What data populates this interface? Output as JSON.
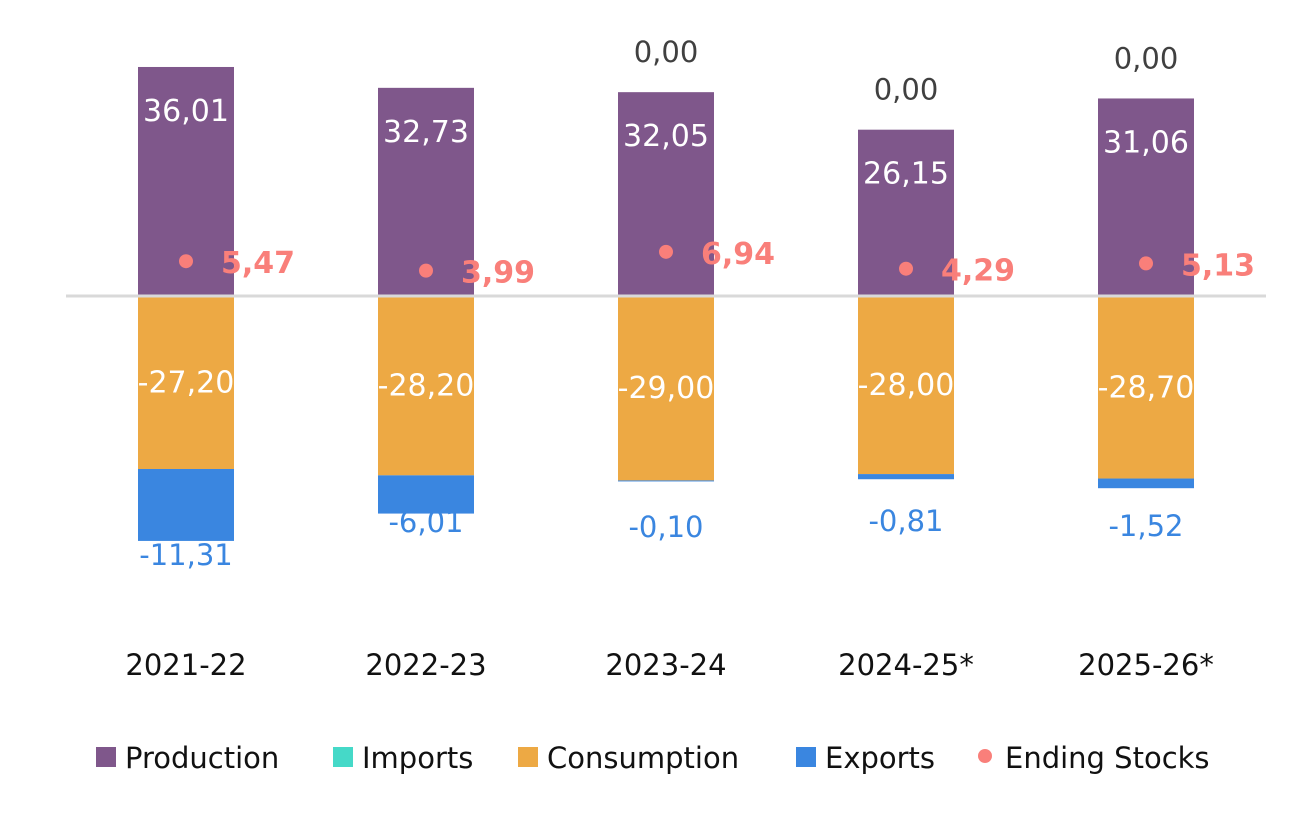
{
  "chart_data": {
    "type": "bar",
    "stacked": true,
    "title": "",
    "xlabel": "",
    "ylabel": "",
    "categories": [
      "2021-22",
      "2022-23",
      "2023-24",
      "2024-25*",
      "2025-26*"
    ],
    "series": [
      {
        "name": "Production",
        "kind": "bar",
        "color": "#7F578B",
        "values": [
          36.01,
          32.73,
          32.05,
          26.15,
          31.06
        ],
        "labels": [
          "36,01",
          "32,73",
          "32,05",
          "26,15",
          "31,06"
        ]
      },
      {
        "name": "Imports",
        "kind": "bar",
        "color": "#45D9C8",
        "values": [
          null,
          null,
          0.0,
          0.0,
          0.0
        ],
        "labels": [
          "",
          "",
          "0,00",
          "0,00",
          "0,00"
        ]
      },
      {
        "name": "Consumption",
        "kind": "bar",
        "color": "#EDA944",
        "values": [
          -27.2,
          -28.2,
          -29.0,
          -28.0,
          -28.7
        ],
        "labels": [
          "-27,20",
          "-28,20",
          "-29,00",
          "-28,00",
          "-28,70"
        ]
      },
      {
        "name": "Exports",
        "kind": "bar",
        "color": "#3A86E0",
        "values": [
          -11.31,
          -6.01,
          -0.1,
          -0.81,
          -1.52
        ],
        "labels": [
          "-11,31",
          "-6,01",
          "-0,10",
          "-0,81",
          "-1,52"
        ]
      },
      {
        "name": "Ending Stocks",
        "kind": "point",
        "color": "#F97F7A",
        "values": [
          5.47,
          3.99,
          6.94,
          4.29,
          5.13
        ],
        "labels": [
          "5,47",
          "3,99",
          "6,94",
          "4,29",
          "5,13"
        ]
      }
    ],
    "ylim": [
      -40,
      40
    ],
    "grid": false,
    "zero_line": true,
    "legend": {
      "position": "bottom",
      "entries": [
        "Production",
        "Imports",
        "Consumption",
        "Exports",
        "Ending Stocks"
      ]
    }
  }
}
